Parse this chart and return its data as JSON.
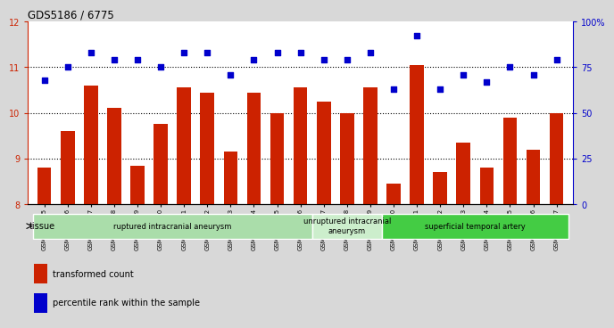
{
  "title": "GDS5186 / 6775",
  "samples": [
    "GSM1306885",
    "GSM1306886",
    "GSM1306887",
    "GSM1306888",
    "GSM1306889",
    "GSM1306890",
    "GSM1306891",
    "GSM1306892",
    "GSM1306893",
    "GSM1306894",
    "GSM1306895",
    "GSM1306896",
    "GSM1306897",
    "GSM1306898",
    "GSM1306899",
    "GSM1306900",
    "GSM1306901",
    "GSM1306902",
    "GSM1306903",
    "GSM1306904",
    "GSM1306905",
    "GSM1306906",
    "GSM1306907"
  ],
  "bar_values": [
    8.8,
    9.6,
    10.6,
    10.1,
    8.85,
    9.75,
    10.55,
    10.45,
    9.15,
    10.45,
    10.0,
    10.55,
    10.25,
    10.0,
    10.55,
    8.45,
    11.05,
    8.7,
    9.35,
    8.8,
    9.9,
    9.2,
    10.0
  ],
  "dot_values": [
    68,
    75,
    83,
    79,
    79,
    75,
    83,
    83,
    71,
    79,
    83,
    83,
    79,
    79,
    83,
    63,
    92,
    63,
    71,
    67,
    75,
    71,
    79
  ],
  "bar_color": "#cc2200",
  "dot_color": "#0000cc",
  "ylim_left": [
    8,
    12
  ],
  "ylim_right": [
    0,
    100
  ],
  "yticks_left": [
    8,
    9,
    10,
    11,
    12
  ],
  "yticks_right": [
    0,
    25,
    50,
    75,
    100
  ],
  "ytick_labels_right": [
    "0",
    "25",
    "50",
    "75",
    "100%"
  ],
  "groups": [
    {
      "label": "ruptured intracranial aneurysm",
      "start": 0,
      "end": 12,
      "color": "#aaddaa"
    },
    {
      "label": "unruptured intracranial\naneurysm",
      "start": 12,
      "end": 15,
      "color": "#cceecc"
    },
    {
      "label": "superficial temporal artery",
      "start": 15,
      "end": 23,
      "color": "#44cc44"
    }
  ],
  "tissue_label": "tissue",
  "legend_bar_label": "transformed count",
  "legend_dot_label": "percentile rank within the sample",
  "background_color": "#d8d8d8",
  "plot_bg_color": "#ffffff",
  "dotted_lines": [
    9,
    10,
    11
  ],
  "bar_width": 0.6,
  "group_border_color": "#ffffff"
}
